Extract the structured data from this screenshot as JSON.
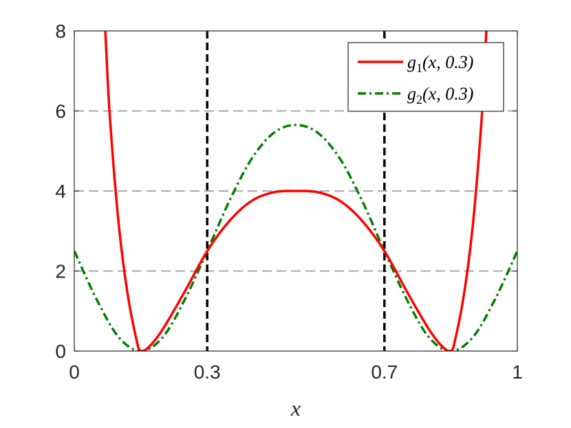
{
  "chart_data": {
    "type": "line",
    "title": "",
    "xlabel": "x",
    "ylabel": "",
    "xlim": [
      0,
      1
    ],
    "ylim": [
      0,
      8
    ],
    "xticks": [
      0,
      0.3,
      0.7,
      1
    ],
    "xtick_labels": [
      "0",
      "0.3",
      "0.7",
      "1"
    ],
    "yticks": [
      0,
      2,
      4,
      6,
      8
    ],
    "ytick_labels": [
      "0",
      "2",
      "4",
      "6",
      "8"
    ],
    "horizontal_dashed_gridlines": [
      2,
      4,
      6
    ],
    "vertical_reference_lines": [
      0.3,
      0.7
    ],
    "legend_position": "top-right",
    "series": [
      {
        "name": "g1(x, 0.3)",
        "color": "#ff0000",
        "line_style": "solid",
        "x": [
          0.07,
          0.08,
          0.1,
          0.12,
          0.14,
          0.15,
          0.17,
          0.2,
          0.25,
          0.3,
          0.35,
          0.4,
          0.45,
          0.5,
          0.55,
          0.6,
          0.65,
          0.7,
          0.75,
          0.8,
          0.83,
          0.85,
          0.86,
          0.88,
          0.9,
          0.92,
          0.93
        ],
        "y": [
          8.0,
          5.9,
          3.2,
          1.45,
          0.3,
          0.0,
          0.12,
          0.55,
          1.5,
          2.5,
          3.25,
          3.75,
          3.97,
          4.0,
          3.97,
          3.75,
          3.25,
          2.5,
          1.5,
          0.55,
          0.12,
          0.0,
          0.3,
          1.45,
          3.2,
          5.9,
          8.0
        ]
      },
      {
        "name": "g2(x, 0.3)",
        "color": "#007f00",
        "line_style": "dash-dot",
        "x": [
          0.0,
          0.05,
          0.1,
          0.15,
          0.2,
          0.25,
          0.3,
          0.35,
          0.4,
          0.45,
          0.5,
          0.55,
          0.6,
          0.65,
          0.7,
          0.75,
          0.8,
          0.85,
          0.9,
          0.95,
          1.0
        ],
        "y": [
          2.5,
          1.3,
          0.35,
          0.0,
          0.35,
          1.3,
          2.5,
          3.75,
          4.8,
          5.45,
          5.65,
          5.45,
          4.8,
          3.75,
          2.5,
          1.3,
          0.35,
          0.0,
          0.35,
          1.3,
          2.5
        ]
      }
    ],
    "legend": {
      "entries": [
        {
          "base": "g",
          "sub": "1",
          "args": "(x, 0.3)"
        },
        {
          "base": "g",
          "sub": "2",
          "args": "(x, 0.3)"
        }
      ]
    }
  }
}
